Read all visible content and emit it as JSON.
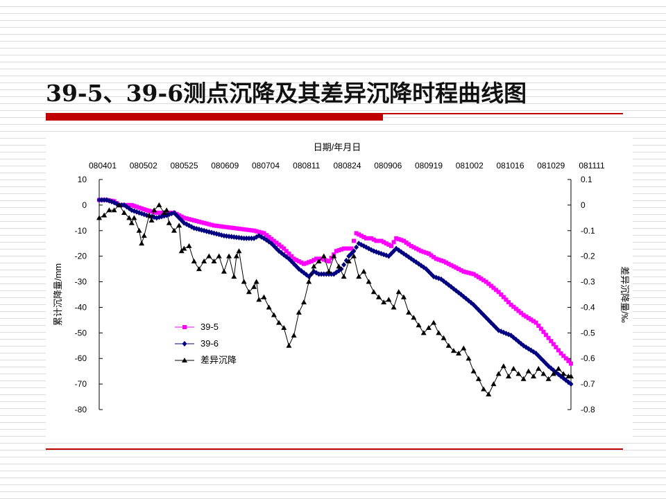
{
  "slide": {
    "title": "39-5、39-6测点沉降及其差异沉降时程曲线图"
  },
  "colors": {
    "accent_red": "#c00000",
    "series_39_5": "#ff00ff",
    "series_39_6": "#000080",
    "series_diff": "#000000"
  },
  "chart_data": {
    "type": "line",
    "x_title": "日期/年月日",
    "x_tick_labels": [
      "080401",
      "080502",
      "080525",
      "080609",
      "080704",
      "080811",
      "080824",
      "080906",
      "080919",
      "081002",
      "081016",
      "081029",
      "081111"
    ],
    "x_axis_position": "top",
    "n_points": 190,
    "ylabel": "累计沉降量/mm",
    "ylim": [
      -80,
      10
    ],
    "yticks": [
      10,
      0,
      -10,
      -20,
      -30,
      -40,
      -50,
      -60,
      -70,
      -80
    ],
    "y2label": "差异沉降量/‰",
    "y2lim": [
      -0.8,
      0.1
    ],
    "y2ticks": [
      "0.1",
      "0",
      "-0.1",
      "-0.2",
      "-0.3",
      "-0.4",
      "-0.5",
      "-0.6",
      "-0.7",
      "-0.8"
    ],
    "grid": false,
    "legend_position": "lower-left",
    "series": [
      {
        "name": "39-5",
        "axis": "left",
        "marker": "square",
        "color": "#ff00ff",
        "x": [
          0,
          3,
          6,
          8,
          10,
          13,
          16,
          19,
          23,
          27,
          30,
          34,
          38,
          42,
          46,
          50,
          54,
          58,
          62,
          66,
          70,
          74,
          78,
          82,
          85,
          87,
          89,
          92,
          95,
          98,
          101,
          103,
          105,
          107,
          109,
          111,
          113,
          115,
          117,
          119,
          122,
          125,
          127,
          129,
          132,
          135,
          138,
          142,
          146,
          150,
          155,
          160,
          165,
          170,
          175,
          180,
          185,
          189
        ],
        "y": [
          2,
          2,
          1.5,
          0,
          0,
          0,
          -1,
          -2,
          -3,
          -3,
          -3,
          -5,
          -6,
          -7,
          -8,
          -8.5,
          -9,
          -9.5,
          -10,
          -11,
          -14,
          -17,
          -21,
          -23,
          -22,
          -21,
          -21,
          -22,
          -18,
          -17,
          -17,
          -11,
          -12,
          -13,
          -13,
          -14,
          -14,
          -15,
          -16,
          -13,
          -14,
          -16,
          -17,
          -18,
          -19,
          -21,
          -22,
          -24,
          -26,
          -27,
          -30,
          -34,
          -39,
          -43,
          -46,
          -52,
          -58,
          -62
        ]
      },
      {
        "name": "39-6",
        "axis": "left",
        "marker": "diamond",
        "color": "#000080",
        "x": [
          0,
          3,
          6,
          8,
          10,
          13,
          16,
          19,
          23,
          27,
          30,
          34,
          38,
          42,
          46,
          50,
          54,
          58,
          62,
          64,
          66,
          69,
          72,
          76,
          80,
          84,
          86,
          88,
          91,
          94,
          97,
          100,
          102,
          104,
          106,
          108,
          110,
          113,
          116,
          119,
          122,
          125,
          128,
          131,
          134,
          137,
          141,
          145,
          150,
          155,
          160,
          165,
          170,
          175,
          180,
          185,
          189
        ],
        "y": [
          2,
          2,
          1,
          0,
          0,
          -2,
          -3,
          -4,
          -5,
          -4,
          -3,
          -7,
          -9,
          -10,
          -11,
          -12,
          -12.5,
          -13,
          -13,
          -12,
          -13,
          -15,
          -18,
          -21,
          -25,
          -28,
          -26,
          -27,
          -27,
          -27,
          -25,
          -20,
          -18,
          -15,
          -16,
          -17,
          -18,
          -19,
          -20,
          -17,
          -19,
          -21,
          -23,
          -25,
          -28,
          -29,
          -32,
          -35,
          -39,
          -44,
          -49,
          -51,
          -55,
          -58,
          -63,
          -67,
          -70
        ]
      },
      {
        "name": "差异沉降",
        "axis": "right",
        "marker": "triangle",
        "color": "#000000",
        "x": [
          0,
          2,
          4,
          6,
          8,
          10,
          12,
          13,
          14,
          16,
          17,
          18,
          20,
          21,
          22,
          24,
          26,
          27,
          28,
          30,
          32,
          33,
          34,
          36,
          38,
          40,
          42,
          44,
          46,
          48,
          50,
          52,
          54,
          55,
          56,
          58,
          60,
          62,
          63,
          64,
          66,
          68,
          70,
          72,
          74,
          76,
          78,
          80,
          82,
          84,
          86,
          88,
          90,
          92,
          94,
          96,
          98,
          100,
          102,
          104,
          106,
          108,
          110,
          112,
          114,
          116,
          118,
          120,
          122,
          124,
          126,
          128,
          130,
          132,
          134,
          136,
          138,
          140,
          142,
          144,
          146,
          148,
          150,
          152,
          154,
          156,
          158,
          160,
          162,
          164,
          166,
          168,
          170,
          172,
          174,
          176,
          178,
          180,
          182,
          184,
          186,
          188,
          189
        ],
        "y": [
          -0.05,
          -0.04,
          -0.02,
          -0.02,
          0,
          -0.03,
          -0.05,
          -0.07,
          -0.05,
          -0.1,
          -0.15,
          -0.12,
          -0.04,
          -0.06,
          -0.02,
          0,
          -0.03,
          -0.02,
          -0.07,
          -0.1,
          -0.08,
          -0.18,
          -0.17,
          -0.16,
          -0.22,
          -0.25,
          -0.22,
          -0.2,
          -0.22,
          -0.2,
          -0.26,
          -0.2,
          -0.28,
          -0.2,
          -0.18,
          -0.3,
          -0.34,
          -0.32,
          -0.3,
          -0.37,
          -0.36,
          -0.4,
          -0.43,
          -0.46,
          -0.48,
          -0.55,
          -0.51,
          -0.42,
          -0.38,
          -0.3,
          -0.24,
          -0.22,
          -0.2,
          -0.26,
          -0.2,
          -0.24,
          -0.28,
          -0.22,
          -0.2,
          -0.28,
          -0.26,
          -0.3,
          -0.34,
          -0.36,
          -0.38,
          -0.37,
          -0.4,
          -0.34,
          -0.36,
          -0.42,
          -0.44,
          -0.47,
          -0.5,
          -0.48,
          -0.46,
          -0.5,
          -0.52,
          -0.55,
          -0.57,
          -0.58,
          -0.56,
          -0.6,
          -0.65,
          -0.68,
          -0.72,
          -0.74,
          -0.7,
          -0.66,
          -0.63,
          -0.67,
          -0.64,
          -0.66,
          -0.68,
          -0.65,
          -0.67,
          -0.64,
          -0.66,
          -0.68,
          -0.66,
          -0.64,
          -0.66,
          -0.67,
          -0.67
        ]
      }
    ]
  }
}
